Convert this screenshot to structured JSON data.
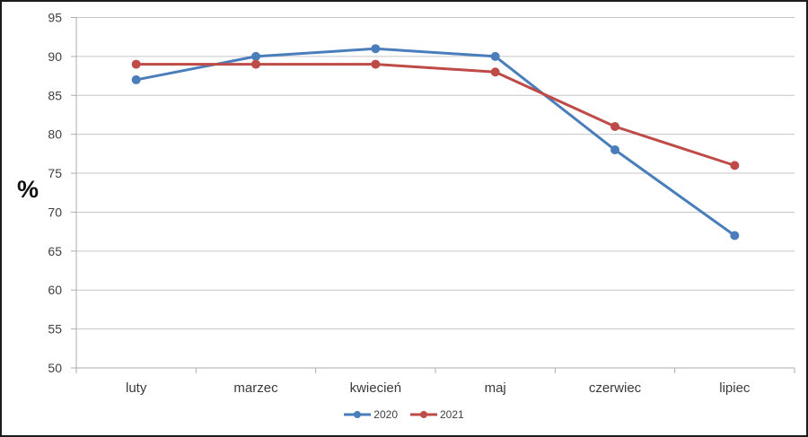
{
  "chart_data": {
    "type": "line",
    "title": "",
    "xlabel": "",
    "ylabel": "%",
    "categories": [
      "luty",
      "marzec",
      "kwiecień",
      "maj",
      "czerwiec",
      "lipiec"
    ],
    "series": [
      {
        "name": "2020",
        "color": "#4A7EBB",
        "values": [
          87,
          90,
          91,
          90,
          78,
          67
        ]
      },
      {
        "name": "2021",
        "color": "#BE4B48",
        "values": [
          89,
          89,
          89,
          88,
          81,
          76
        ]
      }
    ],
    "ylim": [
      50,
      95
    ],
    "yticks": [
      50,
      55,
      60,
      65,
      70,
      75,
      80,
      85,
      90,
      95
    ],
    "grid": true,
    "legend_position": "bottom-center",
    "styles": {
      "grid_color": "#C6C6C6",
      "axis_color": "#ADADAD",
      "tick_label_color": "#3F3F3F",
      "background": "#FFFFFF"
    }
  }
}
